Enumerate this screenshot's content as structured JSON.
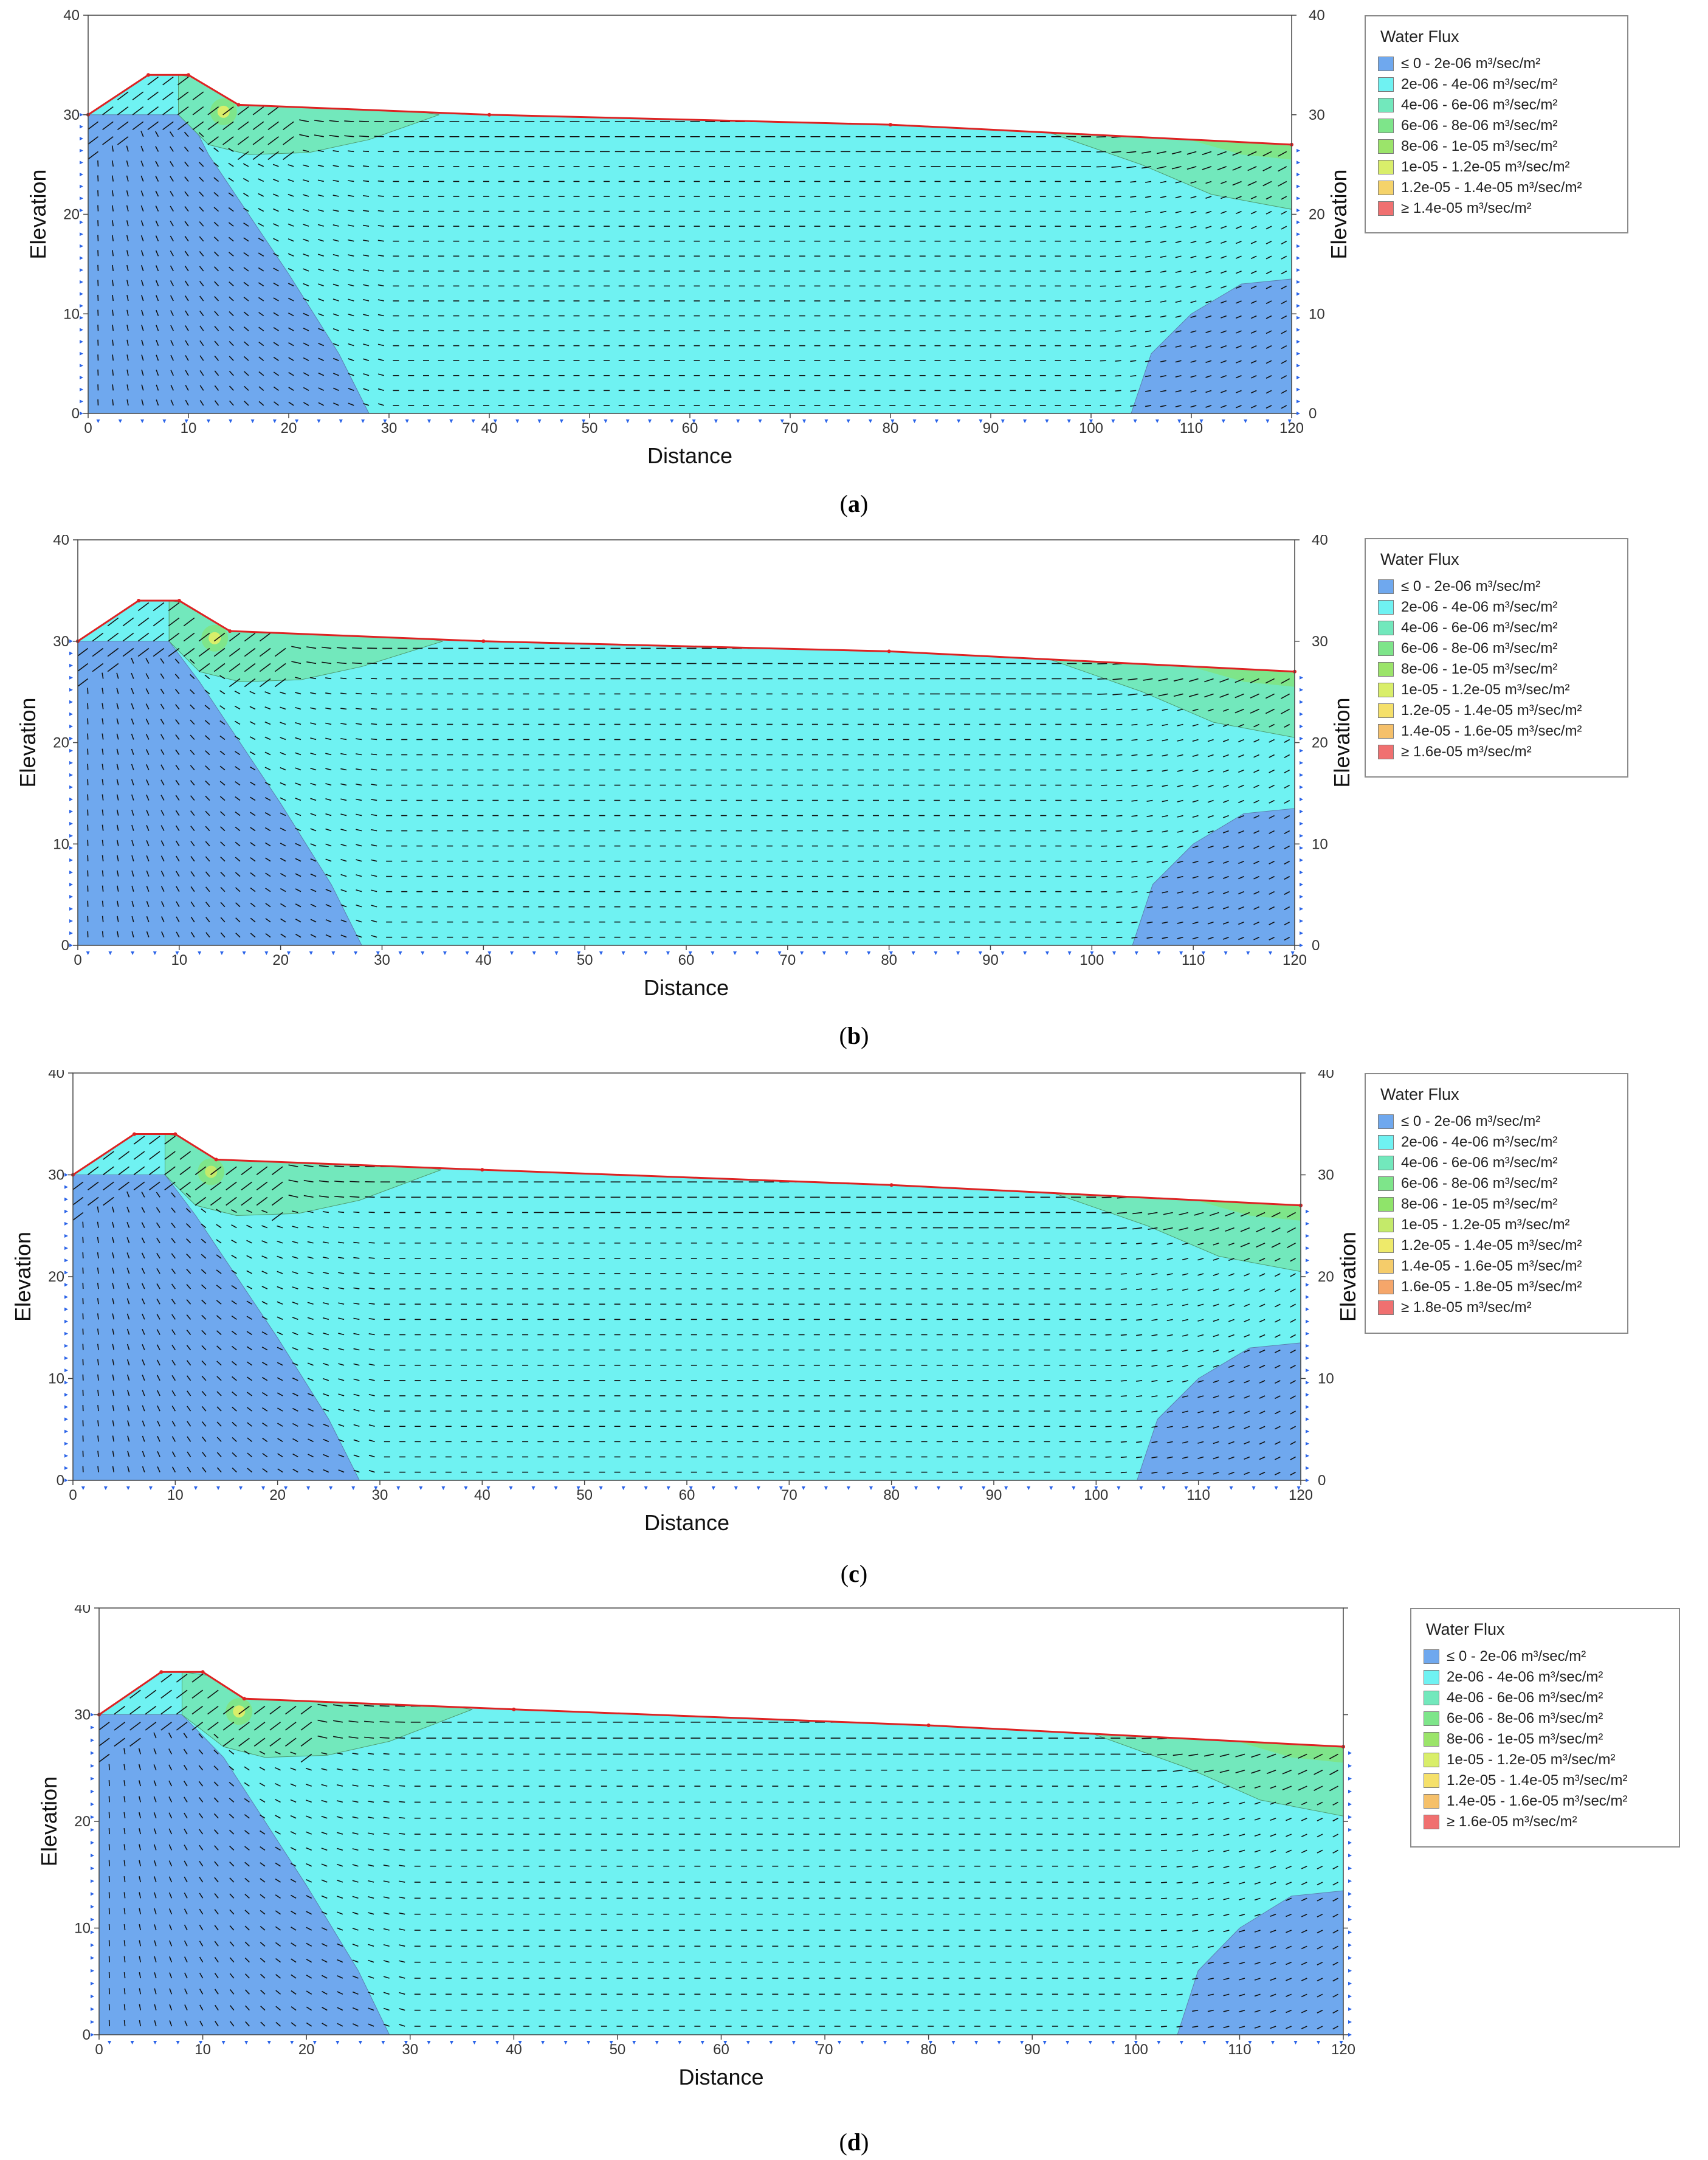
{
  "panels": [
    {
      "caption_label": "a",
      "legend": {
        "title": "Water Flux",
        "items": [
          {
            "label": "≤ 0 - 2e-06 m³/sec/m²",
            "color": "#6fa8ee"
          },
          {
            "label": "2e-06 - 4e-06 m³/sec/m²",
            "color": "#6ff2f2"
          },
          {
            "label": "4e-06 - 6e-06 m³/sec/m²",
            "color": "#72e8bc"
          },
          {
            "label": "6e-06 - 8e-06 m³/sec/m²",
            "color": "#7ee58a"
          },
          {
            "label": "8e-06 - 1e-05 m³/sec/m²",
            "color": "#9be46a"
          },
          {
            "label": "1e-05 - 1.2e-05 m³/sec/m²",
            "color": "#d9ee6a"
          },
          {
            "label": "1.2e-05 - 1.4e-05 m³/sec/m²",
            "color": "#f5d36a"
          },
          {
            "label": "≥ 1.4e-05 m³/sec/m²",
            "color": "#f07070"
          }
        ]
      }
    },
    {
      "caption_label": "b",
      "legend": {
        "title": "Water Flux",
        "items": [
          {
            "label": "≤ 0 - 2e-06 m³/sec/m²",
            "color": "#6fa8ee"
          },
          {
            "label": "2e-06 - 4e-06 m³/sec/m²",
            "color": "#6ff2f2"
          },
          {
            "label": "4e-06 - 6e-06 m³/sec/m²",
            "color": "#72e8bc"
          },
          {
            "label": "6e-06 - 8e-06 m³/sec/m²",
            "color": "#7ee58a"
          },
          {
            "label": "8e-06 - 1e-05 m³/sec/m²",
            "color": "#9be46a"
          },
          {
            "label": "1e-05 - 1.2e-05 m³/sec/m²",
            "color": "#d9ee6a"
          },
          {
            "label": "1.2e-05 - 1.4e-05 m³/sec/m²",
            "color": "#f5e06a"
          },
          {
            "label": "1.4e-05 - 1.6e-05 m³/sec/m²",
            "color": "#f5c06a"
          },
          {
            "label": "≥ 1.6e-05 m³/sec/m²",
            "color": "#f07070"
          }
        ]
      }
    },
    {
      "caption_label": "c",
      "legend": {
        "title": "Water Flux",
        "items": [
          {
            "label": "≤ 0 - 2e-06 m³/sec/m²",
            "color": "#6fa8ee"
          },
          {
            "label": "2e-06 - 4e-06 m³/sec/m²",
            "color": "#6ff2f2"
          },
          {
            "label": "4e-06 - 6e-06 m³/sec/m²",
            "color": "#72e8bc"
          },
          {
            "label": "6e-06 - 8e-06 m³/sec/m²",
            "color": "#7ee58a"
          },
          {
            "label": "8e-06 - 1e-05 m³/sec/m²",
            "color": "#8fe46a"
          },
          {
            "label": "1e-05 - 1.2e-05 m³/sec/m²",
            "color": "#c4ea6a"
          },
          {
            "label": "1.2e-05 - 1.4e-05 m³/sec/m²",
            "color": "#eeea6a"
          },
          {
            "label": "1.4e-05 - 1.6e-05 m³/sec/m²",
            "color": "#f5cc6a"
          },
          {
            "label": "1.6e-05 - 1.8e-05 m³/sec/m²",
            "color": "#f5a66a"
          },
          {
            "label": "≥ 1.8e-05 m³/sec/m²",
            "color": "#f07070"
          }
        ]
      }
    },
    {
      "caption_label": "d",
      "legend": {
        "title": "Water Flux",
        "items": [
          {
            "label": "≤ 0 - 2e-06 m³/sec/m²",
            "color": "#6fa8ee"
          },
          {
            "label": "2e-06 - 4e-06 m³/sec/m²",
            "color": "#6ff2f2"
          },
          {
            "label": "4e-06 - 6e-06 m³/sec/m²",
            "color": "#72e8bc"
          },
          {
            "label": "6e-06 - 8e-06 m³/sec/m²",
            "color": "#7ee58a"
          },
          {
            "label": "8e-06 - 1e-05 m³/sec/m²",
            "color": "#9be46a"
          },
          {
            "label": "1e-05 - 1.2e-05 m³/sec/m²",
            "color": "#d9ee6a"
          },
          {
            "label": "1.2e-05 - 1.4e-05 m³/sec/m²",
            "color": "#f5e06a"
          },
          {
            "label": "1.4e-05 - 1.6e-05 m³/sec/m²",
            "color": "#f5c06a"
          },
          {
            "label": "≥ 1.6e-05 m³/sec/m²",
            "color": "#f07070"
          }
        ]
      }
    }
  ],
  "chart_data": [
    {
      "type": "heatmap",
      "xlabel": "Distance",
      "ylabel_left": "Elevation",
      "ylabel_right": "Elevation",
      "xlim": [
        0,
        120
      ],
      "ylim": [
        0,
        40
      ],
      "x_ticks": [
        0,
        10,
        20,
        30,
        40,
        50,
        60,
        70,
        80,
        90,
        100,
        110,
        120
      ],
      "y_ticks": [
        0,
        10,
        20,
        30,
        40
      ],
      "grid": false,
      "legend_position": "right",
      "ground_surface": {
        "x": [
          0,
          6,
          10,
          15,
          40,
          80,
          120
        ],
        "y": [
          30,
          34,
          34,
          31,
          30,
          29,
          27
        ]
      },
      "low_flux_zone_left": {
        "x": [
          0,
          10,
          12,
          16,
          20,
          25,
          28
        ],
        "y": [
          30,
          30,
          26,
          20,
          14,
          6,
          0
        ]
      },
      "low_flux_zone_right": {
        "x": [
          104,
          106,
          110,
          115,
          120
        ],
        "y": [
          0,
          6,
          10,
          13,
          13.5
        ]
      },
      "high_flux_zone_toe": {
        "x": [
          9,
          12,
          16,
          22,
          28,
          35
        ],
        "y": [
          30,
          27,
          26,
          26.2,
          27.5,
          30
        ]
      },
      "high_flux_zone_outlet": {
        "x": [
          95,
          105,
          112,
          120
        ],
        "y": [
          28.5,
          25,
          22,
          20.5
        ]
      }
    },
    {
      "type": "heatmap",
      "xlabel": "Distance",
      "ylabel_left": "Elevation",
      "ylabel_right": "Elevation",
      "xlim": [
        0,
        120
      ],
      "ylim": [
        0,
        40
      ],
      "x_ticks": [
        0,
        10,
        20,
        30,
        40,
        50,
        60,
        70,
        80,
        90,
        100,
        110,
        120
      ],
      "y_ticks": [
        0,
        10,
        20,
        30,
        40
      ],
      "grid": false,
      "legend_position": "right",
      "ground_surface": {
        "x": [
          0,
          6,
          10,
          15,
          40,
          80,
          120
        ],
        "y": [
          30,
          34,
          34,
          31,
          30,
          29,
          27
        ]
      },
      "low_flux_zone_left": {
        "x": [
          0,
          9,
          12,
          16,
          20,
          25,
          28
        ],
        "y": [
          30,
          30,
          26,
          20,
          14,
          6,
          0
        ]
      },
      "low_flux_zone_right": {
        "x": [
          104,
          106,
          110,
          115,
          120
        ],
        "y": [
          0,
          6,
          10,
          13,
          13.5
        ]
      },
      "high_flux_zone_toe": {
        "x": [
          9,
          12,
          16,
          22,
          28,
          36
        ],
        "y": [
          30,
          27,
          26,
          26.2,
          27.5,
          30
        ]
      },
      "high_flux_zone_outlet": {
        "x": [
          95,
          105,
          112,
          120
        ],
        "y": [
          28.5,
          25,
          22,
          20.5
        ]
      }
    },
    {
      "type": "heatmap",
      "xlabel": "Distance",
      "ylabel_left": "Elevation",
      "ylabel_right": "Elevation",
      "xlim": [
        0,
        120
      ],
      "ylim": [
        0,
        40
      ],
      "x_ticks": [
        0,
        10,
        20,
        30,
        40,
        50,
        60,
        70,
        80,
        90,
        100,
        110,
        120
      ],
      "y_ticks": [
        0,
        10,
        20,
        30,
        40
      ],
      "grid": false,
      "legend_position": "right",
      "ground_surface": {
        "x": [
          0,
          6,
          10,
          14,
          40,
          80,
          120
        ],
        "y": [
          30,
          34,
          34,
          31.5,
          30.5,
          29,
          27
        ]
      },
      "low_flux_zone_left": {
        "x": [
          0,
          9,
          12,
          16,
          20,
          25,
          28
        ],
        "y": [
          30,
          30,
          26,
          20,
          14,
          6,
          0
        ]
      },
      "low_flux_zone_right": {
        "x": [
          104,
          106,
          110,
          115,
          120
        ],
        "y": [
          0,
          6,
          10,
          13,
          13.5
        ]
      },
      "high_flux_zone_toe": {
        "x": [
          9,
          12,
          16,
          22,
          28,
          36
        ],
        "y": [
          30,
          27,
          26,
          26.2,
          27.5,
          30.5
        ]
      },
      "high_flux_zone_outlet": {
        "x": [
          95,
          105,
          112,
          120
        ],
        "y": [
          28.5,
          25,
          22,
          20.5
        ]
      }
    },
    {
      "type": "heatmap",
      "xlabel": "Distance",
      "ylabel_left": "Elevation",
      "ylabel_right": "Elevation",
      "xlim": [
        0,
        120
      ],
      "ylim": [
        0,
        40
      ],
      "x_ticks": [
        0,
        10,
        20,
        30,
        40,
        50,
        60,
        70,
        80,
        90,
        100,
        110,
        120
      ],
      "y_ticks": [
        0,
        10,
        20,
        30,
        40
      ],
      "grid": false,
      "legend_position": "right",
      "ground_surface": {
        "x": [
          0,
          6,
          10,
          14,
          40,
          80,
          120
        ],
        "y": [
          30,
          34,
          34,
          31.5,
          30.5,
          29,
          27
        ]
      },
      "low_flux_zone_left": {
        "x": [
          0,
          8,
          12,
          16,
          20,
          25,
          28
        ],
        "y": [
          30,
          30,
          26,
          20,
          14,
          6,
          0
        ]
      },
      "low_flux_zone_right": {
        "x": [
          104,
          106,
          110,
          115,
          120
        ],
        "y": [
          0,
          6,
          10,
          13,
          13.5
        ]
      },
      "high_flux_zone_toe": {
        "x": [
          8,
          12,
          16,
          22,
          28,
          36
        ],
        "y": [
          30,
          27,
          26,
          26.2,
          27.5,
          30.5
        ]
      },
      "high_flux_zone_outlet": {
        "x": [
          95,
          105,
          112,
          120
        ],
        "y": [
          28.5,
          25,
          22,
          20.5
        ]
      }
    }
  ]
}
